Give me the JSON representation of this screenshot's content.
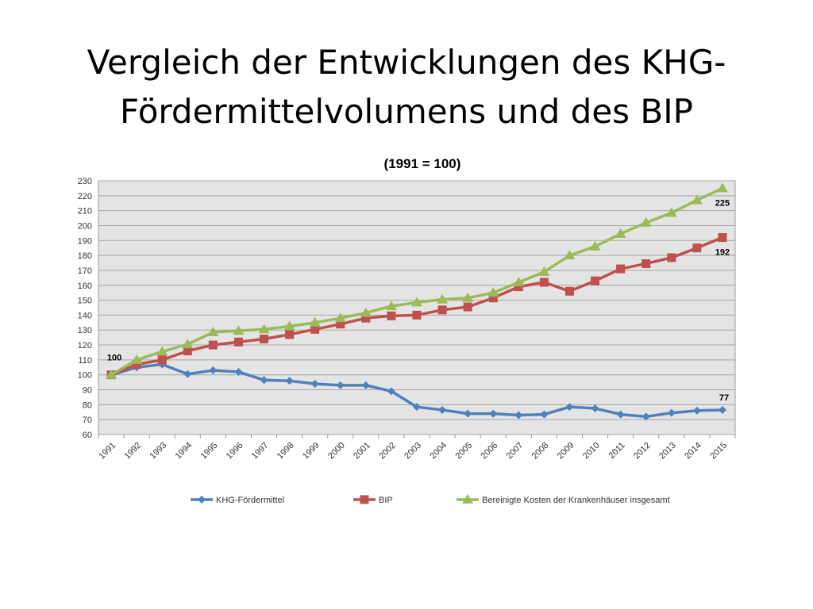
{
  "slide": {
    "title_line1": "Vergleich der Entwicklungen des KHG-",
    "title_line2": "Fördermittelvolumens und des BIP"
  },
  "chart_data": {
    "type": "line",
    "title": "(1991 = 100)",
    "xlabel": "",
    "ylabel": "",
    "ylim": [
      60,
      230
    ],
    "yticks": [
      60,
      70,
      80,
      90,
      100,
      110,
      120,
      130,
      140,
      150,
      160,
      170,
      180,
      190,
      200,
      210,
      220,
      230
    ],
    "grid": true,
    "legend_position": "bottom",
    "x": [
      "1991",
      "1992",
      "1993",
      "1994",
      "1995",
      "1996",
      "1997",
      "1998",
      "1999",
      "2000",
      "2001",
      "2002",
      "2003",
      "2004",
      "2005",
      "2006",
      "2007",
      "2008",
      "2009",
      "2010",
      "2011",
      "2012",
      "2013",
      "2014",
      "2015"
    ],
    "series": [
      {
        "name": "KHG-Fördermittel",
        "color": "#4f81bd",
        "marker": "diamond",
        "values": [
          100,
          105,
          107,
          100.5,
          103,
          102,
          96.5,
          96,
          94,
          93,
          93,
          89,
          78.5,
          76.5,
          74,
          74,
          73,
          73.5,
          78.5,
          77.5,
          73.5,
          72,
          74.5,
          76,
          76.5
        ]
      },
      {
        "name": "BIP",
        "color": "#c0504d",
        "marker": "square",
        "values": [
          100,
          107,
          110,
          116,
          120,
          122,
          124,
          127,
          130.5,
          134,
          138,
          139.5,
          140,
          143.5,
          145.5,
          151.5,
          159,
          162,
          156,
          163,
          171,
          174.5,
          178.5,
          185,
          192
        ]
      },
      {
        "name": "Bereinigte Kosten der Krankenhäuser insgesamt",
        "color": "#9bbb59",
        "marker": "triangle",
        "values": [
          100,
          110,
          115.5,
          120.5,
          128.5,
          129.5,
          130.5,
          132.5,
          135,
          138,
          141.5,
          146,
          148.5,
          150.5,
          151.5,
          155,
          162,
          169,
          180,
          186,
          194.5,
          202,
          208.5,
          217,
          225
        ]
      }
    ],
    "annotations": [
      {
        "text": "100",
        "x": "1991",
        "series": "BIP"
      },
      {
        "text": "225",
        "x": "2015",
        "series": "Bereinigte Kosten der Krankenhäuser insgesamt"
      },
      {
        "text": "192",
        "x": "2015",
        "series": "BIP"
      },
      {
        "text": "77",
        "x": "2015",
        "series": "KHG-Fördermittel"
      }
    ]
  }
}
